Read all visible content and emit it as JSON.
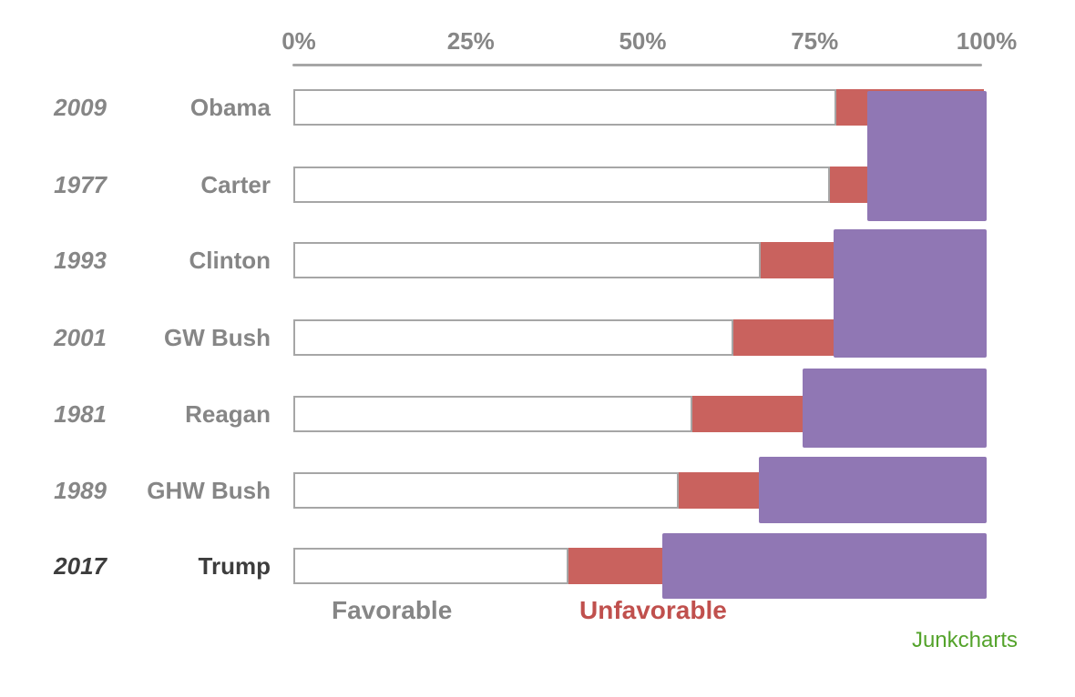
{
  "legend": {
    "favorable_label": "Favorable",
    "unfavorable_label": "Unfavorable"
  },
  "credit": {
    "text": "Junkcharts"
  },
  "colors": {
    "favorable_fill": "#ffffff",
    "bar_border": "#a6a6a6",
    "unfavorable_bar": "#c9625e",
    "overlay_purple": "#9077b4",
    "axis_line": "#a6a6a6",
    "text_gray": "#868686",
    "text_dark": "#3d3d3d",
    "legend_red": "#c0504d",
    "credit_green": "#54a32b"
  },
  "chart_data": {
    "type": "bar",
    "orientation": "horizontal",
    "title": "",
    "x_axis": {
      "min": 0,
      "max": 100,
      "ticks": [
        0,
        25,
        50,
        75,
        100
      ],
      "tick_labels": [
        "0%",
        "25%",
        "50%",
        "75%",
        "100%"
      ]
    },
    "series": [
      {
        "year": "2009",
        "president": "Obama",
        "favorable": 79,
        "unfavorable_visible": 4,
        "emphasized": false
      },
      {
        "year": "1977",
        "president": "Carter",
        "favorable": 78,
        "unfavorable_visible": 5,
        "emphasized": false
      },
      {
        "year": "1993",
        "president": "Clinton",
        "favorable": 68,
        "unfavorable_visible": 10,
        "emphasized": false
      },
      {
        "year": "2001",
        "president": "GW Bush",
        "favorable": 64,
        "unfavorable_visible": 14,
        "emphasized": false
      },
      {
        "year": "1981",
        "president": "Reagan",
        "favorable": 58,
        "unfavorable_visible": 16,
        "emphasized": false
      },
      {
        "year": "1989",
        "president": "GHW Bush",
        "favorable": 56,
        "unfavorable_visible": 12,
        "emphasized": false
      },
      {
        "year": "2017",
        "president": "Trump",
        "favorable": 40,
        "unfavorable_visible": 13,
        "emphasized": true
      }
    ],
    "unfavorable_bars_extend_to_pct": 100.5,
    "overlays": [
      {
        "covers": [
          "Obama",
          "Carter"
        ],
        "from_pct": 83.4,
        "to_pct": 100.7
      },
      {
        "covers": [
          "Clinton",
          "GW Bush"
        ],
        "from_pct": 78.5,
        "to_pct": 100.7
      },
      {
        "covers": [
          "Reagan"
        ],
        "from_pct": 74.0,
        "to_pct": 100.7
      },
      {
        "covers": [
          "GHW Bush"
        ],
        "from_pct": 67.7,
        "to_pct": 100.7
      },
      {
        "covers": [
          "Trump"
        ],
        "from_pct": 53.6,
        "to_pct": 100.7
      }
    ],
    "legend_entries": [
      "Favorable",
      "Unfavorable"
    ]
  }
}
